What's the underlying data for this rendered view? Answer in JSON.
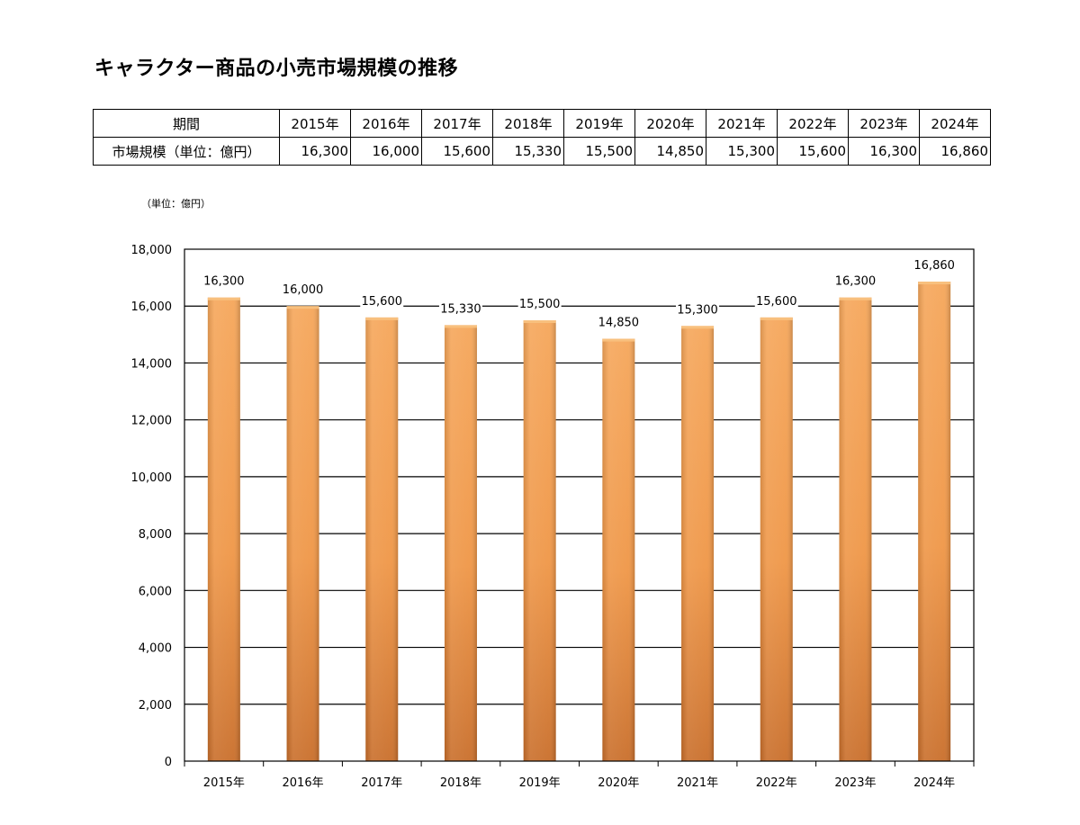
{
  "title": "キャラクター商品の小売市場規模の推移",
  "table": {
    "header_label": "期間",
    "row_label": "市場規模（単位：億円）",
    "years": [
      "2015年",
      "2016年",
      "2017年",
      "2018年",
      "2019年",
      "2020年",
      "2021年",
      "2022年",
      "2023年",
      "2024年"
    ],
    "values": [
      "16,300",
      "16,000",
      "15,600",
      "15,330",
      "15,500",
      "14,850",
      "15,300",
      "15,600",
      "16,300",
      "16,860"
    ]
  },
  "unit_label": "（単位：億円）",
  "chart_data": {
    "type": "bar",
    "categories": [
      "2015年",
      "2016年",
      "2017年",
      "2018年",
      "2019年",
      "2020年",
      "2021年",
      "2022年",
      "2023年",
      "2024年"
    ],
    "values": [
      16300,
      16000,
      15600,
      15330,
      15500,
      14850,
      15300,
      15600,
      16300,
      16860
    ],
    "value_labels": [
      "16,300",
      "16,000",
      "15,600",
      "15,330",
      "15,500",
      "14,850",
      "15,300",
      "15,600",
      "16,300",
      "16,860"
    ],
    "ylim": [
      0,
      18000
    ],
    "yticks": [
      0,
      2000,
      4000,
      6000,
      8000,
      10000,
      12000,
      14000,
      16000,
      18000
    ],
    "ytick_labels": [
      "0",
      "2,000",
      "4,000",
      "6,000",
      "8,000",
      "10,000",
      "12,000",
      "14,000",
      "16,000",
      "18,000"
    ],
    "grid": true,
    "legend": "none",
    "colors": {
      "bar_light": "#f5a65a",
      "bar_mid": "#ef9646",
      "bar_dark": "#c96e2a",
      "grid": "#000000"
    }
  }
}
